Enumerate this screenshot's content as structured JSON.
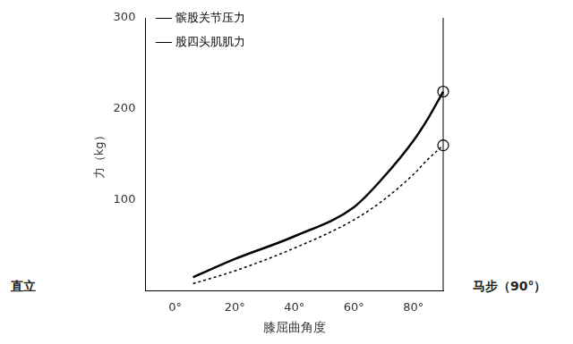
{
  "chart_data": {
    "type": "line",
    "x_label": "膝屈曲角度",
    "y_label": "力（kg）",
    "x": [
      6,
      20,
      40,
      60,
      70,
      80,
      85,
      90
    ],
    "series": [
      {
        "name": "髌股关节压力",
        "color": "#000000",
        "line_style": "solid",
        "marker": "circle",
        "values": [
          15,
          35,
          60,
          92,
          125,
          165,
          190,
          219
        ]
      },
      {
        "name": "股四头肌肌力",
        "color": "#000000",
        "line_style": "dashed",
        "marker": "circle",
        "values": [
          8,
          22,
          47,
          78,
          100,
          128,
          145,
          160
        ]
      }
    ],
    "xlim": [
      -10,
      90
    ],
    "xticks": [
      {
        "value": 0,
        "label": "0°"
      },
      {
        "value": 20,
        "label": "20°"
      },
      {
        "value": 40,
        "label": "40°"
      },
      {
        "value": 60,
        "label": "60°"
      },
      {
        "value": 80,
        "label": "80°"
      }
    ],
    "ylim": [
      0,
      300
    ],
    "yticks": [
      100,
      200,
      300
    ],
    "grid": false,
    "legend": "upper left",
    "annotations": [
      "直立",
      "马步（90°）"
    ]
  }
}
